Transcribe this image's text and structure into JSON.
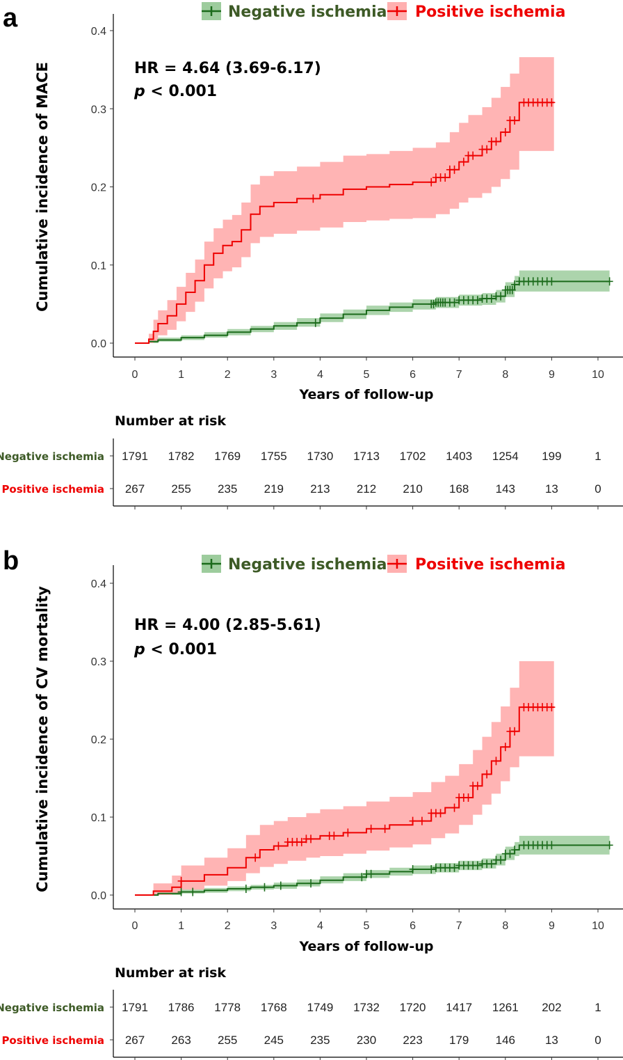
{
  "colors": {
    "negative_line": "#1b6b1b",
    "negative_band": "#9dcc9d",
    "positive_line": "#ee0000",
    "positive_band": "#ffb0b0",
    "negative_text": "#3d5a26",
    "positive_text": "#ee0000"
  },
  "chart_data": [
    {
      "type": "line",
      "panel": "a",
      "ylabel": "Cumulative incidence of MACE",
      "xlabel": "Years of follow-up",
      "xlim": [
        0,
        10.3
      ],
      "ylim": [
        0,
        0.4
      ],
      "x_ticks": [
        "0",
        "1",
        "2",
        "3",
        "4",
        "5",
        "6",
        "7",
        "8",
        "9",
        "10"
      ],
      "y_ticks": [
        "0.0",
        "0.1",
        "0.2",
        "0.3",
        "0.4"
      ],
      "legend": [
        "Negative ischemia",
        "Positive ischemia"
      ],
      "legend_position": "top",
      "hr_text": "HR = 4.64 (3.69-6.17)",
      "p_text": "< 0.001",
      "p_symbol": "p",
      "series": [
        {
          "name": "Negative ischemia",
          "x": [
            0,
            0.3,
            0.5,
            1,
            1.5,
            2,
            2.5,
            3,
            3.5,
            4,
            4.5,
            5,
            5.5,
            6,
            6.5,
            7,
            7.5,
            7.8,
            8,
            8.2,
            8.3,
            10.25
          ],
          "y": [
            0,
            0.002,
            0.004,
            0.007,
            0.01,
            0.014,
            0.018,
            0.022,
            0.026,
            0.032,
            0.037,
            0.042,
            0.046,
            0.05,
            0.052,
            0.055,
            0.057,
            0.06,
            0.068,
            0.075,
            0.079,
            0.079
          ],
          "lower": [
            0,
            0.0,
            0.002,
            0.004,
            0.007,
            0.01,
            0.014,
            0.017,
            0.021,
            0.027,
            0.031,
            0.036,
            0.04,
            0.043,
            0.045,
            0.048,
            0.049,
            0.052,
            0.059,
            0.066,
            0.066,
            0.066
          ],
          "upper": [
            0,
            0.004,
            0.007,
            0.01,
            0.014,
            0.018,
            0.022,
            0.027,
            0.032,
            0.038,
            0.043,
            0.048,
            0.052,
            0.056,
            0.059,
            0.062,
            0.064,
            0.068,
            0.078,
            0.086,
            0.093,
            0.093
          ],
          "censor_x": [
            3.9,
            6.4,
            6.45,
            6.5,
            6.55,
            6.6,
            6.65,
            6.7,
            6.8,
            6.9,
            7.0,
            7.1,
            7.2,
            7.3,
            7.4,
            7.5,
            7.6,
            7.7,
            7.8,
            7.9,
            8.0,
            8.05,
            8.1,
            8.15,
            8.2,
            8.3,
            8.4,
            8.5,
            8.6,
            8.7,
            8.8,
            8.9,
            9.0,
            10.25
          ]
        },
        {
          "name": "Positive ischemia",
          "x": [
            0,
            0.3,
            0.4,
            0.5,
            0.7,
            0.9,
            1.1,
            1.3,
            1.5,
            1.7,
            1.9,
            2.1,
            2.3,
            2.5,
            2.7,
            3.0,
            3.5,
            4.0,
            4.5,
            5.0,
            5.5,
            6.0,
            6.5,
            6.8,
            7.0,
            7.2,
            7.5,
            7.7,
            7.9,
            8.1,
            8.3,
            9.05
          ],
          "y": [
            0,
            0.005,
            0.015,
            0.025,
            0.035,
            0.05,
            0.065,
            0.08,
            0.1,
            0.115,
            0.125,
            0.13,
            0.145,
            0.165,
            0.175,
            0.18,
            0.185,
            0.19,
            0.197,
            0.2,
            0.203,
            0.206,
            0.212,
            0.222,
            0.232,
            0.24,
            0.248,
            0.258,
            0.27,
            0.285,
            0.308,
            0.308
          ],
          "lower": [
            0,
            0.0,
            0.003,
            0.01,
            0.017,
            0.028,
            0.04,
            0.053,
            0.07,
            0.083,
            0.092,
            0.097,
            0.11,
            0.128,
            0.136,
            0.14,
            0.144,
            0.148,
            0.155,
            0.157,
            0.159,
            0.16,
            0.165,
            0.172,
            0.18,
            0.186,
            0.192,
            0.2,
            0.21,
            0.222,
            0.246,
            0.246
          ],
          "upper": [
            0,
            0.012,
            0.03,
            0.042,
            0.055,
            0.072,
            0.09,
            0.107,
            0.13,
            0.147,
            0.158,
            0.164,
            0.18,
            0.203,
            0.214,
            0.22,
            0.226,
            0.232,
            0.24,
            0.242,
            0.246,
            0.25,
            0.257,
            0.27,
            0.282,
            0.292,
            0.302,
            0.314,
            0.328,
            0.345,
            0.366,
            0.366
          ],
          "censor_x": [
            3.85,
            6.4,
            6.5,
            6.6,
            6.7,
            6.8,
            6.9,
            7.1,
            7.2,
            7.3,
            7.5,
            7.6,
            7.7,
            7.8,
            8.0,
            8.1,
            8.2,
            8.4,
            8.5,
            8.6,
            8.7,
            8.8,
            8.9,
            9.0
          ]
        }
      ],
      "number_at_risk": {
        "title": "Number at risk",
        "groups": [
          {
            "name": "Negative ischemia",
            "values": [
              "1791",
              "1782",
              "1769",
              "1755",
              "1730",
              "1713",
              "1702",
              "1403",
              "1254",
              "199",
              "1"
            ]
          },
          {
            "name": "Positive ischemia",
            "values": [
              "267",
              "255",
              "235",
              "219",
              "213",
              "212",
              "210",
              "168",
              "143",
              "13",
              "0"
            ]
          }
        ]
      }
    },
    {
      "type": "line",
      "panel": "b",
      "ylabel": "Cumulative incidence of CV mortality",
      "xlabel": "Years of follow-up",
      "xlim": [
        0,
        10.3
      ],
      "ylim": [
        0,
        0.4
      ],
      "x_ticks": [
        "0",
        "1",
        "2",
        "3",
        "4",
        "5",
        "6",
        "7",
        "8",
        "9",
        "10"
      ],
      "y_ticks": [
        "0.0",
        "0.1",
        "0.2",
        "0.3",
        "0.4"
      ],
      "legend": [
        "Negative ischemia",
        "Positive ischemia"
      ],
      "legend_position": "top",
      "hr_text": "HR = 4.00 (2.85-5.61)",
      "p_text": "< 0.001",
      "p_symbol": "p",
      "series": [
        {
          "name": "Negative ischemia",
          "x": [
            0,
            0.5,
            1,
            1.5,
            2,
            2.5,
            3,
            3.5,
            4,
            4.5,
            5,
            5.5,
            6,
            6.5,
            7,
            7.5,
            7.8,
            8,
            8.2,
            8.3,
            10.25
          ],
          "y": [
            0,
            0.002,
            0.004,
            0.006,
            0.008,
            0.01,
            0.012,
            0.015,
            0.019,
            0.023,
            0.027,
            0.03,
            0.033,
            0.035,
            0.038,
            0.04,
            0.045,
            0.053,
            0.058,
            0.064,
            0.064
          ],
          "lower": [
            0,
            0.0,
            0.002,
            0.003,
            0.005,
            0.007,
            0.008,
            0.011,
            0.015,
            0.018,
            0.022,
            0.025,
            0.027,
            0.029,
            0.032,
            0.034,
            0.038,
            0.045,
            0.05,
            0.052,
            0.052
          ],
          "upper": [
            0,
            0.004,
            0.007,
            0.009,
            0.011,
            0.013,
            0.016,
            0.02,
            0.024,
            0.028,
            0.032,
            0.035,
            0.038,
            0.041,
            0.044,
            0.047,
            0.053,
            0.062,
            0.068,
            0.076,
            0.076
          ],
          "censor_x": [
            1.0,
            1.25,
            2.4,
            2.8,
            3.15,
            3.8,
            4.9,
            5.0,
            5.1,
            6.0,
            6.4,
            6.5,
            6.6,
            6.7,
            6.8,
            6.9,
            7.0,
            7.1,
            7.2,
            7.3,
            7.4,
            7.5,
            7.6,
            7.7,
            7.8,
            7.9,
            8.0,
            8.1,
            8.2,
            8.4,
            8.5,
            8.6,
            8.7,
            8.8,
            8.9,
            9.0,
            10.25
          ]
        },
        {
          "name": "Positive ischemia",
          "x": [
            0,
            0.4,
            0.8,
            1.0,
            1.5,
            2.0,
            2.4,
            2.7,
            3.0,
            3.3,
            3.7,
            4.0,
            4.5,
            5.0,
            5.5,
            6.0,
            6.4,
            6.7,
            7.0,
            7.3,
            7.5,
            7.7,
            7.9,
            8.1,
            8.3,
            9.05
          ],
          "y": [
            0,
            0.005,
            0.01,
            0.018,
            0.026,
            0.035,
            0.048,
            0.058,
            0.063,
            0.068,
            0.072,
            0.076,
            0.08,
            0.085,
            0.09,
            0.095,
            0.105,
            0.112,
            0.125,
            0.14,
            0.155,
            0.172,
            0.19,
            0.21,
            0.241,
            0.241
          ],
          "lower": [
            0,
            0.0,
            0.002,
            0.007,
            0.012,
            0.018,
            0.028,
            0.036,
            0.04,
            0.044,
            0.048,
            0.05,
            0.053,
            0.057,
            0.061,
            0.065,
            0.073,
            0.079,
            0.09,
            0.103,
            0.116,
            0.13,
            0.146,
            0.164,
            0.178,
            0.178
          ],
          "upper": [
            0,
            0.015,
            0.025,
            0.038,
            0.048,
            0.06,
            0.077,
            0.09,
            0.095,
            0.1,
            0.105,
            0.11,
            0.114,
            0.12,
            0.126,
            0.132,
            0.145,
            0.153,
            0.168,
            0.186,
            0.203,
            0.222,
            0.242,
            0.266,
            0.3,
            0.3
          ],
          "censor_x": [
            1.0,
            2.6,
            3.1,
            3.3,
            3.4,
            3.5,
            3.6,
            3.7,
            3.8,
            4.2,
            4.3,
            4.6,
            5.1,
            5.4,
            6.0,
            6.2,
            6.4,
            6.5,
            6.6,
            6.9,
            7.0,
            7.1,
            7.2,
            7.3,
            7.4,
            7.6,
            7.8,
            8.0,
            8.1,
            8.2,
            8.4,
            8.5,
            8.6,
            8.7,
            8.8,
            8.9,
            9.0
          ]
        }
      ],
      "number_at_risk": {
        "title": "Number at risk",
        "groups": [
          {
            "name": "Negative ischemia",
            "values": [
              "1791",
              "1786",
              "1778",
              "1768",
              "1749",
              "1732",
              "1720",
              "1417",
              "1261",
              "202",
              "1"
            ]
          },
          {
            "name": "Positive ischemia",
            "values": [
              "267",
              "263",
              "255",
              "245",
              "235",
              "230",
              "223",
              "179",
              "146",
              "13",
              "0"
            ]
          }
        ]
      }
    }
  ]
}
